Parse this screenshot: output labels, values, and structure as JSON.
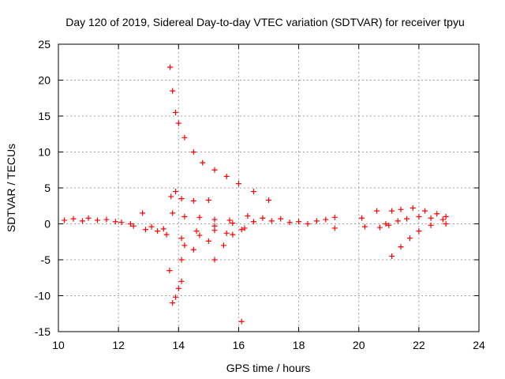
{
  "chart_data": {
    "type": "scatter",
    "title": "Day 120 of 2019, Sidereal Day-to-day VTEC variation (SDTVAR) for receiver tpyu",
    "xlabel": "GPS time / hours",
    "ylabel": "SDTVAR / TECUs",
    "xlim": [
      10,
      24
    ],
    "ylim": [
      -15,
      25
    ],
    "x_ticks": [
      10,
      12,
      14,
      16,
      18,
      20,
      22,
      24
    ],
    "y_ticks": [
      -15,
      -10,
      -5,
      0,
      5,
      10,
      15,
      20,
      25
    ],
    "x_tick_labels": [
      "10",
      "12",
      "14",
      "16",
      "18",
      "20",
      "22",
      "24"
    ],
    "y_tick_labels": [
      "-15",
      "-10",
      "-5",
      "0",
      "5",
      "10",
      "15",
      "20",
      "25"
    ],
    "grid": true,
    "marker": "+",
    "marker_color": "#ff0000",
    "series": [
      {
        "name": "tpyu",
        "points": [
          [
            10.2,
            0.5
          ],
          [
            10.5,
            0.7
          ],
          [
            10.8,
            0.4
          ],
          [
            11.0,
            0.8
          ],
          [
            11.3,
            0.5
          ],
          [
            11.6,
            0.6
          ],
          [
            11.9,
            0.3
          ],
          [
            12.1,
            0.2
          ],
          [
            12.4,
            0.0
          ],
          [
            12.5,
            -0.3
          ],
          [
            12.8,
            1.5
          ],
          [
            12.9,
            -0.8
          ],
          [
            13.1,
            -0.4
          ],
          [
            13.3,
            -1.0
          ],
          [
            13.5,
            -0.7
          ],
          [
            13.6,
            -1.5
          ],
          [
            13.72,
            21.8
          ],
          [
            13.8,
            18.5
          ],
          [
            13.9,
            15.5
          ],
          [
            14.0,
            14.0
          ],
          [
            14.2,
            12.0
          ],
          [
            14.5,
            10.0
          ],
          [
            14.8,
            8.5
          ],
          [
            15.2,
            7.5
          ],
          [
            15.6,
            6.6
          ],
          [
            16.0,
            5.6
          ],
          [
            16.5,
            4.5
          ],
          [
            17.0,
            3.3
          ],
          [
            13.75,
            3.8
          ],
          [
            13.9,
            4.5
          ],
          [
            14.1,
            3.5
          ],
          [
            14.5,
            3.2
          ],
          [
            15.0,
            3.3
          ],
          [
            13.8,
            1.5
          ],
          [
            14.2,
            1.0
          ],
          [
            14.7,
            0.9
          ],
          [
            15.2,
            0.6
          ],
          [
            15.7,
            0.5
          ],
          [
            16.3,
            1.1
          ],
          [
            13.8,
            -11.0
          ],
          [
            13.9,
            -10.2
          ],
          [
            14.0,
            -9.0
          ],
          [
            14.1,
            -8.0
          ],
          [
            13.7,
            -6.5
          ],
          [
            14.1,
            -5.0
          ],
          [
            14.5,
            -3.6
          ],
          [
            15.0,
            -2.4
          ],
          [
            15.6,
            -1.3
          ],
          [
            16.2,
            -0.6
          ],
          [
            14.1,
            -2.0
          ],
          [
            14.6,
            -1.0
          ],
          [
            15.2,
            -0.3
          ],
          [
            15.8,
            0.1
          ],
          [
            14.2,
            -3.0
          ],
          [
            14.7,
            -1.6
          ],
          [
            15.2,
            -0.9
          ],
          [
            15.2,
            -5.0
          ],
          [
            15.5,
            -3.0
          ],
          [
            15.8,
            -1.5
          ],
          [
            16.1,
            -0.8
          ],
          [
            16.1,
            -13.6
          ],
          [
            16.5,
            0.3
          ],
          [
            16.8,
            0.8
          ],
          [
            17.1,
            0.4
          ],
          [
            17.4,
            0.7
          ],
          [
            17.7,
            0.2
          ],
          [
            18.0,
            0.3
          ],
          [
            18.3,
            0.0
          ],
          [
            18.6,
            0.4
          ],
          [
            18.9,
            0.6
          ],
          [
            19.2,
            0.9
          ],
          [
            19.2,
            -0.6
          ],
          [
            20.1,
            0.8
          ],
          [
            20.2,
            -0.4
          ],
          [
            20.6,
            1.8
          ],
          [
            20.7,
            -0.5
          ],
          [
            20.9,
            0.0
          ],
          [
            21.1,
            1.8
          ],
          [
            21.4,
            2.0
          ],
          [
            21.8,
            2.2
          ],
          [
            22.2,
            1.8
          ],
          [
            22.6,
            1.4
          ],
          [
            22.9,
            1.0
          ],
          [
            21.1,
            -4.5
          ],
          [
            21.4,
            -3.2
          ],
          [
            21.7,
            -2.0
          ],
          [
            22.0,
            -1.0
          ],
          [
            22.4,
            -0.2
          ],
          [
            22.9,
            0.0
          ],
          [
            21.0,
            -0.2
          ],
          [
            21.3,
            0.4
          ],
          [
            21.6,
            0.7
          ],
          [
            22.0,
            1.0
          ],
          [
            22.4,
            0.8
          ],
          [
            22.8,
            0.6
          ]
        ]
      }
    ]
  }
}
